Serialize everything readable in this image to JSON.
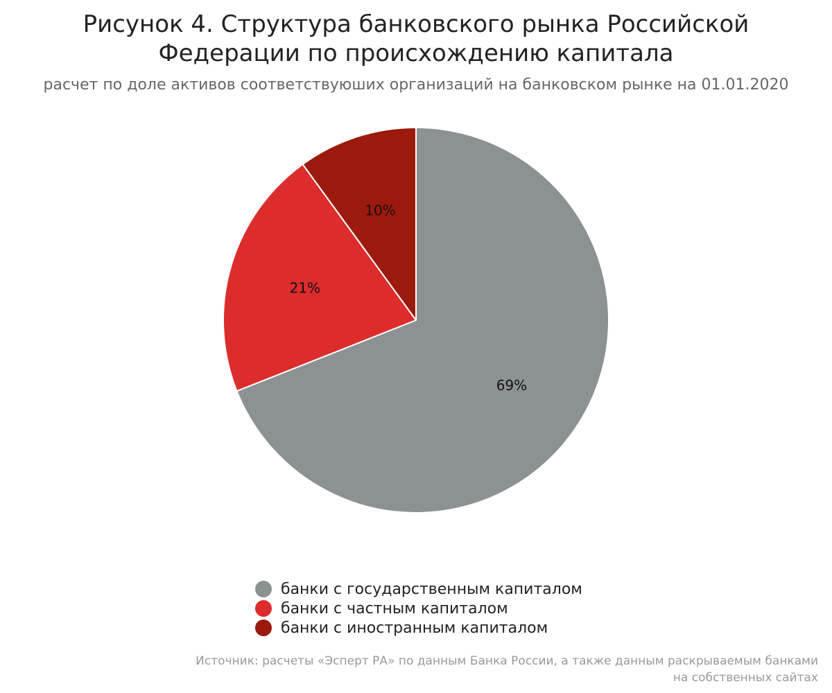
{
  "chart_data": {
    "type": "pie",
    "title_lines": [
      "Рисунок 4. Структура банковского рынка Российской",
      "Федерации по происхождению капитала"
    ],
    "subtitle": "расчет по доле активов соответствуюших организаций на банковском рынке на 01.01.2020",
    "slices": [
      {
        "label": "банки с государственным капиталом",
        "value": 69,
        "data_label": "69%",
        "color": "#8c9194"
      },
      {
        "label": "банки с частным капиталом",
        "value": 21,
        "data_label": "21%",
        "color": "#dd2c2c"
      },
      {
        "label": "банки с иностранным капиталом",
        "value": 10,
        "data_label": "10%",
        "color": "#9c1a0c"
      }
    ],
    "start_angle": "12 o'clock",
    "direction": "clockwise",
    "legend_position": "bottom-center",
    "source_lines": [
      "Источник: расчеты «Эсперт РА» по данным Банка России, а также данным раскрываемым банками",
      "на собственных сайтах"
    ]
  }
}
